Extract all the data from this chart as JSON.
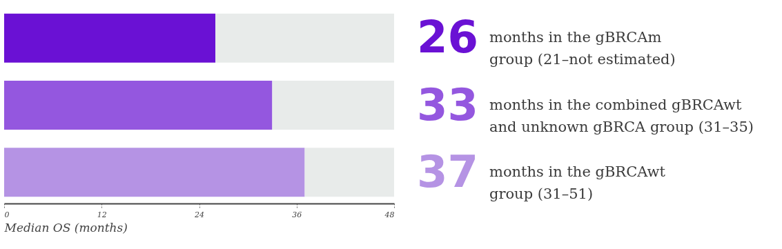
{
  "chart_data": {
    "type": "bar",
    "orientation": "horizontal",
    "stacked": true,
    "categories": [
      null,
      null,
      null
    ],
    "xlabel": "Median OS (months)",
    "xlim": [
      0,
      48
    ],
    "xticks": [
      0,
      12,
      24,
      36,
      48
    ],
    "series": [
      {
        "colors": [
          "#6a11d4",
          "#9457df",
          "#b593e4"
        ],
        "values": [
          26,
          33,
          37
        ],
        "value_labels": [
          "26",
          "33",
          "37"
        ]
      },
      {
        "color": "#e8ebea",
        "values": [
          22,
          15,
          11
        ]
      }
    ],
    "annotations": [
      "months in the gBRCAm\ngroup (21–not estimated)",
      "months in the combined gBRCAwt\nand unknown gBRCA group (31–35)",
      "months in the gBRCAwt\ngroup (31–51)"
    ],
    "grid": false
  }
}
